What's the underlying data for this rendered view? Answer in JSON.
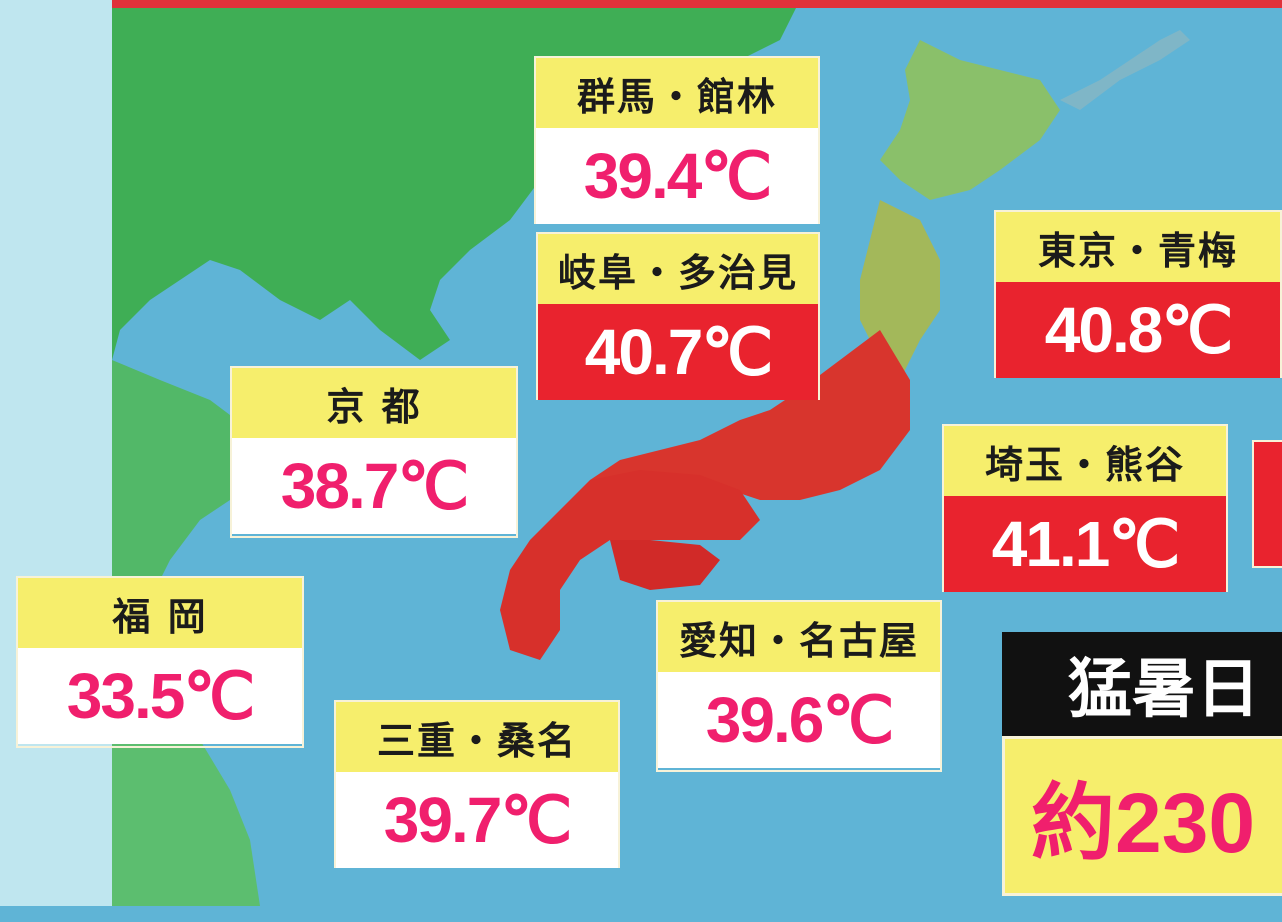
{
  "cities": [
    {
      "id": "gunma",
      "name": "群馬・館林",
      "temp": "39.4℃",
      "hot": false
    },
    {
      "id": "gifu",
      "name": "岐阜・多治見",
      "temp": "40.7℃",
      "hot": true
    },
    {
      "id": "tokyo",
      "name": "東京・青梅",
      "temp": "40.8℃",
      "hot": true
    },
    {
      "id": "kyoto",
      "name": "京 都",
      "temp": "38.7℃",
      "hot": false
    },
    {
      "id": "saitama",
      "name": "埼玉・熊谷",
      "temp": "41.1℃",
      "hot": true
    },
    {
      "id": "fukuoka",
      "name": "福 岡",
      "temp": "33.5℃",
      "hot": false
    },
    {
      "id": "aichi",
      "name": "愛知・名古屋",
      "temp": "39.6℃",
      "hot": false
    },
    {
      "id": "mie",
      "name": "三重・桑名",
      "temp": "39.7℃",
      "hot": false
    }
  ],
  "badge": {
    "title": "猛暑日",
    "count": "約230"
  },
  "colors": {
    "hot_bg": "#e9232e",
    "warm_text": "#f01f6d",
    "label_bg": "#f6ee6c",
    "sea": "#5fb4d6",
    "land": "#3fae55"
  }
}
